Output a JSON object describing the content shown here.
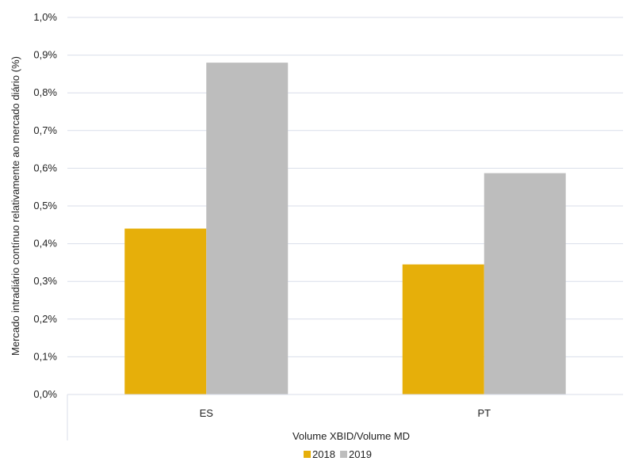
{
  "chart_data": {
    "type": "bar",
    "categories": [
      "ES",
      "PT"
    ],
    "series": [
      {
        "name": "2018",
        "values": [
          0.44,
          0.345
        ],
        "color": "#E6AF0A"
      },
      {
        "name": "2019",
        "values": [
          0.88,
          0.587
        ],
        "color": "#BDBDBD"
      }
    ],
    "xlabel": "Volume XBID/Volume MD",
    "ylabel": "Mercado intradiário contínuo relativamente ao mercado diário (%)",
    "ylim": [
      0,
      1.0
    ],
    "yticks": [
      "0,0%",
      "0,1%",
      "0,2%",
      "0,3%",
      "0,4%",
      "0,5%",
      "0,6%",
      "0,7%",
      "0,8%",
      "0,9%",
      "1,0%"
    ],
    "grid": true,
    "gridline_color": "#D9DEEA",
    "legend_position": "bottom"
  }
}
